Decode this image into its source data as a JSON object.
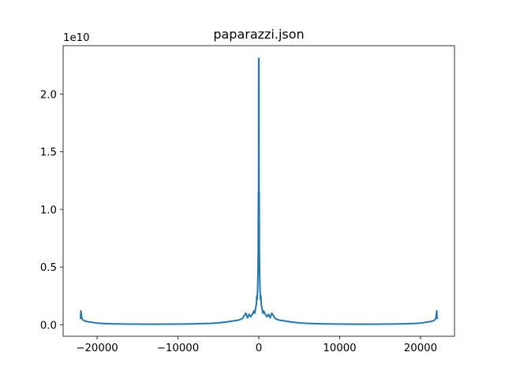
{
  "chart_data": {
    "type": "line",
    "title": "paparazzi.json",
    "xlabel": "",
    "ylabel": "",
    "y_offset_label": "1e10",
    "xlim": [
      -24200,
      24200
    ],
    "ylim": [
      -0.1,
      2.42
    ],
    "x_ticks": [
      -20000,
      -10000,
      0,
      10000,
      20000
    ],
    "x_tick_labels": [
      "−20000",
      "−10000",
      "0",
      "10000",
      "20000"
    ],
    "y_ticks": [
      0.0,
      0.5,
      1.0,
      1.5,
      2.0
    ],
    "y_tick_labels": [
      "0.0",
      "0.5",
      "1.0",
      "1.5",
      "2.0"
    ],
    "grid": false,
    "series": [
      {
        "color": "#1f77b4",
        "x": [
          -22050,
          -22000,
          -21950,
          -21900,
          -21800,
          -21600,
          -21400,
          -21000,
          -20500,
          -20000,
          -19000,
          -18000,
          -16000,
          -14000,
          -12000,
          -10000,
          -8000,
          -6000,
          -5000,
          -4000,
          -3500,
          -3000,
          -2500,
          -2000,
          -1800,
          -1600,
          -1400,
          -1200,
          -1000,
          -800,
          -600,
          -500,
          -400,
          -300,
          -250,
          -200,
          -150,
          -100,
          -70,
          -50,
          -30,
          -15,
          0,
          15,
          30,
          50,
          70,
          100,
          150,
          200,
          250,
          300,
          400,
          500,
          600,
          800,
          1000,
          1200,
          1400,
          1600,
          1800,
          2000,
          2500,
          3000,
          3500,
          4000,
          5000,
          6000,
          8000,
          10000,
          12000,
          14000,
          16000,
          18000,
          19000,
          20000,
          20500,
          21000,
          21400,
          21600,
          21800,
          21900,
          21950,
          22000,
          22050
        ],
        "y": [
          0.05,
          0.12,
          0.09,
          0.06,
          0.045,
          0.035,
          0.03,
          0.025,
          0.02,
          0.014,
          0.01,
          0.008,
          0.006,
          0.005,
          0.005,
          0.006,
          0.008,
          0.012,
          0.016,
          0.024,
          0.03,
          0.035,
          0.04,
          0.055,
          0.08,
          0.1,
          0.06,
          0.09,
          0.07,
          0.09,
          0.12,
          0.1,
          0.14,
          0.18,
          0.25,
          0.22,
          0.3,
          0.45,
          0.65,
          1.15,
          0.9,
          2.31,
          1.6,
          2.31,
          0.9,
          1.15,
          0.65,
          0.45,
          0.3,
          0.22,
          0.25,
          0.18,
          0.14,
          0.1,
          0.12,
          0.09,
          0.07,
          0.09,
          0.06,
          0.1,
          0.08,
          0.055,
          0.04,
          0.035,
          0.03,
          0.024,
          0.016,
          0.012,
          0.008,
          0.006,
          0.005,
          0.005,
          0.006,
          0.008,
          0.01,
          0.014,
          0.02,
          0.025,
          0.03,
          0.035,
          0.045,
          0.06,
          0.09,
          0.12,
          0.05
        ]
      }
    ]
  }
}
